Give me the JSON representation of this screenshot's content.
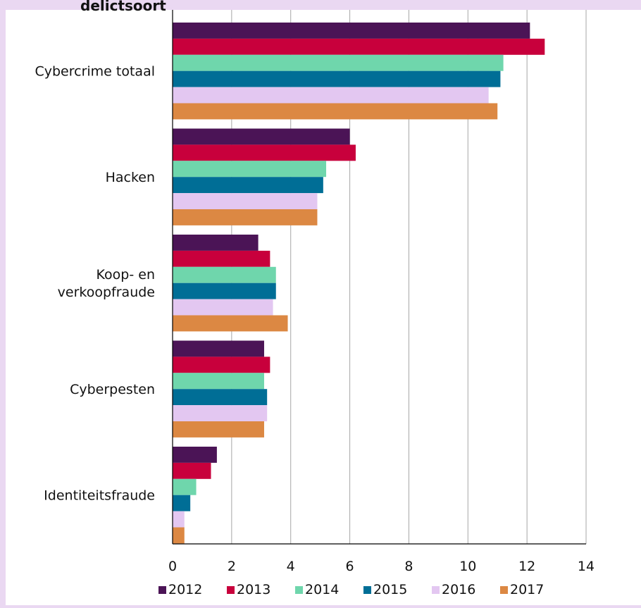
{
  "header": {
    "title_fragment": "delictsoort"
  },
  "chart_data": {
    "type": "bar",
    "orientation": "horizontal",
    "categories": [
      "Cybercrime totaal",
      "Hacken",
      "Koop- en verkoopfraude",
      "Cyberpesten",
      "Identiteitsfraude"
    ],
    "category_lines": [
      [
        "Cybercrime totaal"
      ],
      [
        "Hacken"
      ],
      [
        "Koop- en",
        "verkoopfraude"
      ],
      [
        "Cyberpesten"
      ],
      [
        "Identiteitsfraude"
      ]
    ],
    "series": [
      {
        "name": "2012",
        "color": "#4b1456",
        "values": [
          12.1,
          6.0,
          2.9,
          3.1,
          1.5
        ]
      },
      {
        "name": "2013",
        "color": "#c8003c",
        "values": [
          12.6,
          6.2,
          3.3,
          3.3,
          1.3
        ]
      },
      {
        "name": "2014",
        "color": "#6fd6ac",
        "values": [
          11.2,
          5.2,
          3.5,
          3.1,
          0.8
        ]
      },
      {
        "name": "2015",
        "color": "#006e96",
        "values": [
          11.1,
          5.1,
          3.5,
          3.2,
          0.6
        ]
      },
      {
        "name": "2016",
        "color": "#e3c7f1",
        "values": [
          10.7,
          4.9,
          3.4,
          3.2,
          0.4
        ]
      },
      {
        "name": "2017",
        "color": "#dc8843",
        "values": [
          11.0,
          4.9,
          3.9,
          3.1,
          0.4
        ]
      }
    ],
    "xlim": [
      0,
      14
    ],
    "xticks": [
      "0",
      "2",
      "4",
      "6",
      "8",
      "10",
      "12",
      "14"
    ],
    "grid": "vertical",
    "legend": "bottom"
  }
}
